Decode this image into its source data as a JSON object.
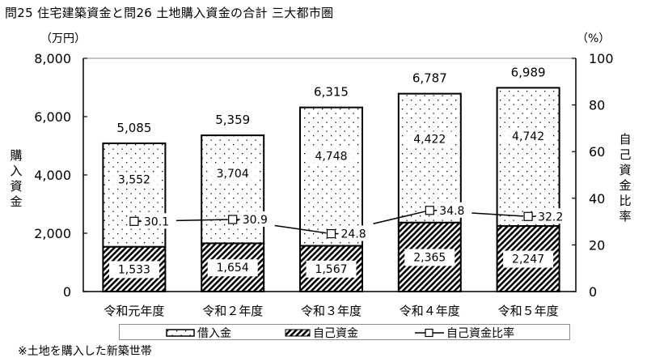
{
  "title": "問25 住宅建築資金と問26 土地購入資金の合計 三大都市圏",
  "note": "※土地を購入した新築世帯",
  "colors": {
    "axis": "#000000",
    "frame": "#8c8c8c",
    "background": "#ffffff",
    "bar_border": "#000000"
  },
  "chart_data": {
    "type": "bar",
    "subtype": "stacked bar with line on secondary axis",
    "title": "問25 住宅建築資金と問26 土地購入資金の合計 三大都市圏",
    "categories": [
      "令和元年度",
      "令和２年度",
      "令和３年度",
      "令和４年度",
      "令和５年度"
    ],
    "series": [
      {
        "name": "自己資金",
        "type": "bar",
        "axis": "left",
        "pattern": "diagonal-hatch",
        "values": [
          1533,
          1654,
          1567,
          2365,
          2247
        ]
      },
      {
        "name": "借入金",
        "type": "bar",
        "axis": "left",
        "pattern": "dots",
        "values": [
          3552,
          3704,
          4748,
          4422,
          4742
        ]
      },
      {
        "name": "自己資金比率",
        "type": "line",
        "axis": "right",
        "marker": "square-open",
        "values": [
          30.1,
          30.9,
          24.8,
          34.8,
          32.2
        ]
      }
    ],
    "totals": [
      5085,
      5359,
      6315,
      6787,
      6989
    ],
    "total_labels": [
      "5,085",
      "5,359",
      "6,315",
      "6,787",
      "6,989"
    ],
    "own_labels": [
      "1,533",
      "1,654",
      "1,567",
      "2,365",
      "2,247"
    ],
    "loan_labels": [
      "3,552",
      "3,704",
      "4,748",
      "4,422",
      "4,742"
    ],
    "ratio_labels": [
      "30.1",
      "30.9",
      "24.8",
      "34.8",
      "32.2"
    ],
    "ylabel": "購入資金",
    "y_unit": "（万円）",
    "ylim": [
      0,
      8000
    ],
    "yticks": [
      0,
      2000,
      4000,
      6000,
      8000
    ],
    "ytick_labels": [
      "0",
      "2,000",
      "4,000",
      "6,000",
      "8,000"
    ],
    "y2label": "自己資金比率",
    "y2_unit": "（%）",
    "y2lim": [
      0,
      100
    ],
    "y2ticks": [
      0,
      20,
      40,
      60,
      80,
      100
    ],
    "y2tick_labels": [
      "0",
      "20",
      "40",
      "60",
      "80",
      "100"
    ],
    "xlabel": "",
    "grid": false,
    "legend_position": "bottom",
    "legend": [
      "借入金",
      "自己資金",
      "自己資金比率"
    ]
  }
}
